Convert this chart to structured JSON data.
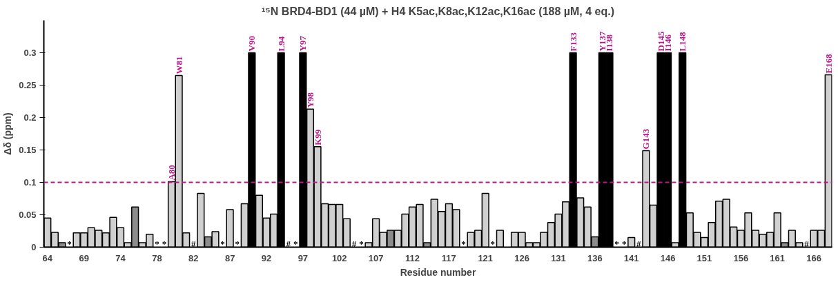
{
  "chart_data": {
    "type": "bar",
    "title": "¹⁵N BRD4-BD1 (44 µM) + H4 K5ac,K8ac,K12ac,K16ac (188 µM, 4 eq.)",
    "xlabel": "Residue number",
    "ylabel": "Δδ (ppm)",
    "categories": [
      "64",
      null,
      null,
      null,
      null,
      "69",
      null,
      null,
      null,
      null,
      "74",
      null,
      null,
      null,
      null,
      "78",
      null,
      null,
      null,
      null,
      "82",
      null,
      null,
      null,
      null,
      "87",
      null,
      null,
      null,
      null,
      "92",
      null,
      null,
      null,
      null,
      "97",
      null,
      null,
      null,
      null,
      "102",
      null,
      null,
      null,
      null,
      "107",
      null,
      null,
      null,
      null,
      "112",
      null,
      null,
      null,
      null,
      "117",
      null,
      null,
      null,
      null,
      "121",
      null,
      null,
      null,
      null,
      "126",
      null,
      null,
      null,
      null,
      "131",
      null,
      null,
      null,
      null,
      "136",
      null,
      null,
      null,
      null,
      "141",
      null,
      null,
      null,
      null,
      "146",
      null,
      null,
      null,
      null,
      "151",
      null,
      null,
      null,
      null,
      "156",
      null,
      null,
      null,
      null,
      "161",
      null,
      null,
      null,
      null,
      "166",
      null,
      null
    ],
    "values": [
      0.045,
      0.023,
      0.007,
      null,
      0.022,
      0.022,
      0.03,
      0.026,
      0.022,
      0.046,
      0.03,
      0.007,
      0.062,
      0.007,
      0.02,
      null,
      null,
      0.101,
      0.265,
      0.022,
      null,
      0.083,
      0.016,
      0.024,
      null,
      0.058,
      null,
      0.067,
      0.3,
      0.08,
      0.045,
      0.051,
      0.3,
      null,
      null,
      0.3,
      0.213,
      0.155,
      0.067,
      0.066,
      0.066,
      0.044,
      null,
      null,
      0.007,
      0.044,
      0.023,
      0.026,
      0.026,
      0.051,
      0.062,
      0.066,
      0.007,
      0.074,
      0.055,
      0.067,
      0.058,
      null,
      0.023,
      0.026,
      0.083,
      null,
      0.026,
      null,
      0.023,
      0.023,
      0.007,
      0.007,
      0.023,
      0.038,
      0.051,
      0.07,
      0.3,
      0.076,
      0.062,
      0.016,
      0.3,
      0.3,
      null,
      null,
      0.015,
      null,
      0.149,
      0.065,
      0.3,
      0.3,
      0.007,
      0.3,
      0.053,
      0.023,
      0.015,
      0.038,
      0.071,
      0.074,
      0.031,
      0.026,
      0.053,
      0.026,
      0.02,
      0.023,
      0.053,
      0.007,
      0.026,
      0.007,
      null,
      0.026,
      0.026,
      0.266
    ],
    "colors": [
      "#d0d0d0",
      "#d0d0d0",
      "#8c8c8c",
      "#d0d0d0",
      "#d0d0d0",
      "#d0d0d0",
      "#d0d0d0",
      "#d0d0d0",
      "#d0d0d0",
      "#d0d0d0",
      "#d0d0d0",
      "#d0d0d0",
      "#8c8c8c",
      "#d0d0d0",
      "#d0d0d0",
      "#d0d0d0",
      "#d0d0d0",
      "#d0d0d0",
      "#d0d0d0",
      "#d0d0d0",
      "#d0d0d0",
      "#d0d0d0",
      "#8c8c8c",
      "#d0d0d0",
      "#d0d0d0",
      "#d0d0d0",
      "#d0d0d0",
      "#d0d0d0",
      "#000000",
      "#d0d0d0",
      "#d0d0d0",
      "#d0d0d0",
      "#000000",
      "#d0d0d0",
      "#d0d0d0",
      "#000000",
      "#d0d0d0",
      "#d0d0d0",
      "#d0d0d0",
      "#d0d0d0",
      "#d0d0d0",
      "#d0d0d0",
      "#d0d0d0",
      "#d0d0d0",
      "#d0d0d0",
      "#d0d0d0",
      "#d0d0d0",
      "#8c8c8c",
      "#d0d0d0",
      "#d0d0d0",
      "#d0d0d0",
      "#d0d0d0",
      "#8c8c8c",
      "#d0d0d0",
      "#d0d0d0",
      "#d0d0d0",
      "#d0d0d0",
      "#d0d0d0",
      "#d0d0d0",
      "#d0d0d0",
      "#d0d0d0",
      "#d0d0d0",
      "#d0d0d0",
      "#d0d0d0",
      "#d0d0d0",
      "#d0d0d0",
      "#d0d0d0",
      "#d0d0d0",
      "#d0d0d0",
      "#d0d0d0",
      "#d0d0d0",
      "#d0d0d0",
      "#000000",
      "#d0d0d0",
      "#d0d0d0",
      "#8c8c8c",
      "#000000",
      "#000000",
      "#d0d0d0",
      "#d0d0d0",
      "#d0d0d0",
      "#d0d0d0",
      "#d0d0d0",
      "#d0d0d0",
      "#000000",
      "#000000",
      "#d0d0d0",
      "#000000",
      "#d0d0d0",
      "#d0d0d0",
      "#d0d0d0",
      "#d0d0d0",
      "#d0d0d0",
      "#d0d0d0",
      "#d0d0d0",
      "#d0d0d0",
      "#d0d0d0",
      "#d0d0d0",
      "#d0d0d0",
      "#d0d0d0",
      "#d0d0d0",
      "#8c8c8c",
      "#d0d0d0",
      "#d0d0d0",
      "#d0d0d0",
      "#d0d0d0",
      "#d0d0d0",
      "#d0d0d0"
    ],
    "value_labels": [
      null,
      null,
      null,
      "*",
      null,
      null,
      null,
      null,
      null,
      null,
      null,
      null,
      null,
      null,
      null,
      "*",
      "*",
      "A80",
      "W81",
      null,
      "#",
      null,
      null,
      null,
      "*",
      null,
      "*",
      null,
      "V90",
      null,
      null,
      null,
      "L94",
      "#",
      "*",
      "Y97",
      "Y98",
      "K99",
      null,
      null,
      null,
      null,
      "#",
      "*",
      null,
      null,
      null,
      null,
      null,
      null,
      null,
      null,
      null,
      null,
      null,
      null,
      null,
      "*",
      null,
      null,
      null,
      "*",
      null,
      null,
      null,
      null,
      null,
      null,
      null,
      null,
      null,
      null,
      "F133",
      null,
      null,
      null,
      "Y137",
      "I138",
      "*",
      "*",
      null,
      "#",
      "G143",
      null,
      "D145",
      "I146",
      null,
      "L148",
      null,
      null,
      null,
      null,
      null,
      null,
      null,
      null,
      null,
      null,
      null,
      null,
      null,
      null,
      null,
      null,
      "#",
      null,
      null,
      "E168"
    ],
    "ylim": [
      0,
      0.35
    ],
    "yticks": [
      0,
      0.05,
      0.1,
      0.15,
      0.2,
      0.25,
      0.3
    ],
    "ref_lines": [
      {
        "axis": "y",
        "value": 0.1,
        "color": "#c0148c",
        "line_style": "dashed"
      }
    ],
    "grid": false
  }
}
